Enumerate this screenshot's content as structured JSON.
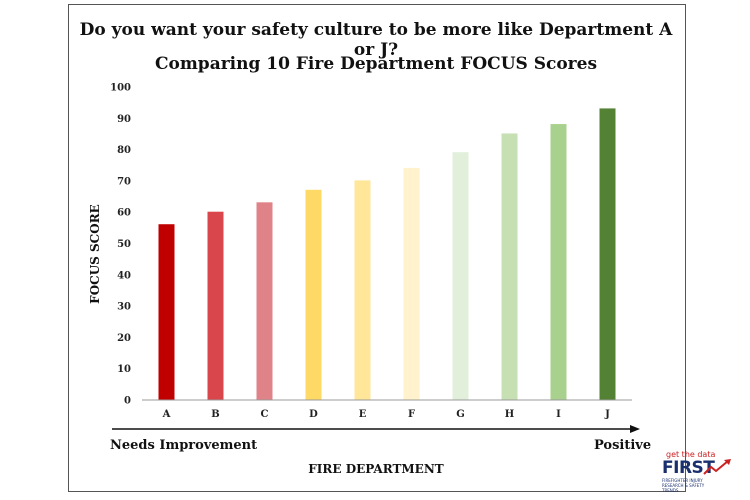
{
  "title": "Do you want your safety culture to be more like Department A or J?",
  "subtitle": "Comparing 10 Fire Department FOCUS Scores",
  "left_label": "Needs Improvement",
  "right_label": "Positive",
  "logo": {
    "tagline": "get the data",
    "name": "FIRST",
    "subtitle": "FIREFIGHTER INJURY RESEARCH & SAFETY TRENDS"
  },
  "chart_data": {
    "type": "bar",
    "categories": [
      "A",
      "B",
      "C",
      "D",
      "E",
      "F",
      "G",
      "H",
      "I",
      "J"
    ],
    "values": [
      56,
      60,
      63,
      67,
      70,
      74,
      79,
      85,
      88,
      93
    ],
    "colors": [
      "#c00000",
      "#d9474d",
      "#e08388",
      "#ffd966",
      "#ffe699",
      "#fff2cc",
      "#e2efda",
      "#c6e0b4",
      "#a9d18e",
      "#548235"
    ],
    "xlabel": "FIRE DEPARTMENT",
    "ylabel": "FOCUS SCORE",
    "ylim": [
      0,
      100
    ],
    "yticks": [
      0,
      10,
      20,
      30,
      40,
      50,
      60,
      70,
      80,
      90,
      100
    ],
    "grid": false
  }
}
